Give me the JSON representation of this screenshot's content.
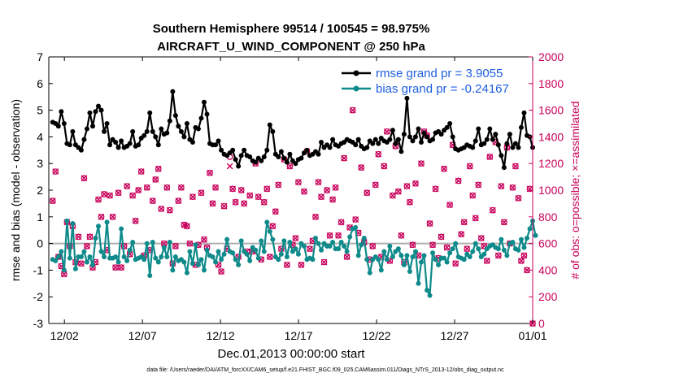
{
  "chart_data": {
    "type": "line",
    "title": "Southern Hemisphere 99514 / 100545 = 98.975%",
    "subtitle": "AIRCRAFT_U_WIND_COMPONENT @ 250 hPa",
    "xlabel": "Dec.01,2013 00:00:00 start",
    "ylabel": "rmse and bias (model - observation)",
    "ylabel_right": "# of obs: o=possible; ×=assimilated",
    "footnote": "data file: /Users/raeder/DAI/ATM_forcXX/CAM6_setup/f.e21.FHIST_BGC.f09_025.CAM6assim.011/Diags_NTrS_2013-12/obs_diag_output.nc",
    "x_range": [
      0,
      31
    ],
    "ylim": [
      -3,
      7
    ],
    "ylim_right": [
      0,
      2000
    ],
    "x_ticks": [
      1,
      6,
      11,
      16,
      21,
      26,
      31
    ],
    "x_tick_labels": [
      "12/02",
      "12/07",
      "12/12",
      "12/17",
      "12/22",
      "12/27",
      "01/01"
    ],
    "y_ticks": [
      "-3",
      "-2",
      "-1",
      "0",
      "1",
      "2",
      "3",
      "4",
      "5",
      "6",
      "7"
    ],
    "y_ticks_right": [
      "0",
      "200",
      "400",
      "600",
      "800",
      "1000",
      "1200",
      "1400",
      "1600",
      "1800",
      "2000"
    ],
    "legend_position": "top-right",
    "series": [
      {
        "name": "rmse grand pr = 3.9055",
        "color": "#000000",
        "values": [
          4.55,
          4.5,
          4.4,
          4.95,
          4.5,
          3.75,
          3.7,
          4.2,
          3.7,
          3.6,
          3.5,
          3.9,
          4.3,
          4.9,
          4.4,
          4.95,
          5.15,
          5.0,
          4.2,
          4.5,
          3.7,
          3.9,
          3.8,
          3.6,
          3.85,
          3.6,
          3.65,
          3.75,
          4.2,
          3.65,
          3.7,
          3.95,
          4.05,
          4.2,
          4.9,
          4.2,
          4.0,
          3.7,
          4.3,
          4.1,
          4.15,
          4.6,
          5.7,
          4.8,
          4.4,
          4.2,
          4.0,
          4.5,
          3.9,
          3.8,
          4.35,
          4.3,
          4.7,
          5.3,
          4.85,
          3.75,
          3.7,
          3.7,
          3.85,
          3.5,
          3.35,
          3.3,
          3.4,
          3.5,
          3.15,
          2.9,
          3.3,
          3.5,
          3.3,
          3.25,
          3.1,
          3.05,
          3.2,
          3.1,
          3.25,
          3.5,
          4.45,
          4.2,
          3.35,
          3.25,
          3.45,
          3.2,
          3.05,
          3.35,
          3.1,
          3.0,
          3.15,
          3.2,
          3.4,
          3.5,
          3.3,
          3.35,
          3.45,
          3.35,
          3.8,
          3.6,
          3.7,
          3.6,
          3.9,
          3.7,
          3.65,
          3.75,
          3.8,
          3.9,
          3.85,
          3.8,
          3.7,
          3.9,
          3.65,
          3.55,
          3.6,
          3.85,
          3.75,
          3.9,
          3.75,
          3.95,
          3.85,
          3.8,
          3.9,
          4.25,
          3.75,
          3.9,
          3.45,
          4.1,
          5.45,
          4.0,
          3.85,
          4.0,
          4.3,
          3.8,
          4.15,
          4.0,
          3.85,
          3.9,
          4.15,
          4.2,
          4.1,
          4.25,
          4.35,
          4.5,
          4.0,
          3.55,
          3.5,
          3.55,
          3.6,
          3.7,
          3.65,
          3.6,
          3.85,
          4.3,
          3.7,
          3.75,
          3.9,
          4.3,
          3.9,
          4.1,
          3.7,
          3.3,
          2.85,
          3.75,
          4.1,
          3.6,
          3.75,
          3.6,
          4.35,
          4.9,
          4.05,
          4.0,
          3.6
        ]
      },
      {
        "name": "bias grand pr = -0.24167",
        "color": "#0f8a8a",
        "values": [
          -0.6,
          -0.65,
          -0.5,
          -0.3,
          -1.0,
          0.85,
          -0.55,
          0.75,
          -0.95,
          -0.5,
          -0.5,
          -0.3,
          -0.7,
          -0.5,
          -0.8,
          0.2,
          0.65,
          -0.3,
          -0.5,
          0.8,
          -0.55,
          -0.55,
          -0.5,
          -0.7,
          0.55,
          -0.5,
          -0.65,
          -0.25,
          0.05,
          -0.6,
          -0.55,
          -0.5,
          -0.6,
          0.0,
          -1.2,
          0.05,
          -0.55,
          -0.7,
          -0.5,
          -0.15,
          -0.5,
          0.05,
          -1.0,
          -0.5,
          -0.65,
          -0.6,
          -0.7,
          -1.1,
          -0.3,
          -0.75,
          -0.05,
          -0.8,
          -0.6,
          -1.0,
          -0.25,
          -0.45,
          -0.5,
          -0.7,
          -0.3,
          -0.6,
          -0.4,
          0.15,
          -0.3,
          -0.35,
          -0.6,
          -0.8,
          0.1,
          -0.3,
          -0.4,
          -0.65,
          -0.15,
          -0.25,
          -0.55,
          0.1,
          -0.3,
          0.8,
          0.45,
          0.15,
          -0.5,
          -0.6,
          -0.4,
          0.1,
          -0.5,
          0.05,
          -0.3,
          -0.2,
          -0.4,
          0.0,
          -0.1,
          -0.6,
          -0.55,
          -0.6,
          0.2,
          0.0,
          -0.25,
          0.0,
          -0.1,
          -0.1,
          0.05,
          -0.2,
          -0.2,
          0.05,
          -0.1,
          -0.3,
          0.25,
          0.55,
          0.6,
          -0.45,
          -0.05,
          0.2,
          -0.6,
          -1.1,
          -0.6,
          -0.5,
          -0.6,
          -1.0,
          -0.3,
          -0.6,
          -0.1,
          -0.5,
          -0.3,
          -0.2,
          -0.45,
          -0.8,
          -0.45,
          -1.05,
          -0.5,
          -0.3,
          -1.5,
          -0.7,
          -0.45,
          -1.75,
          -1.95,
          -0.35,
          -0.6,
          -0.8,
          -0.55,
          -0.55,
          -0.7,
          -0.35,
          -0.2,
          0.0,
          -0.5,
          -0.55,
          -0.6,
          -0.4,
          -0.5,
          -0.3,
          0.0,
          -0.2,
          -0.5,
          -0.4,
          -0.2,
          -0.1,
          -0.05,
          -0.15,
          -0.2,
          0.15,
          -0.25,
          -0.45,
          0.0,
          0.05,
          -0.2,
          -0.25,
          0.15,
          -0.15,
          0.2,
          0.55,
          0.85,
          0.3
        ]
      },
      {
        "name": "# of obs possible",
        "color": "#c8005a",
        "marker": "o",
        "axis": "right",
        "values": [
          920,
          1140,
          500,
          430,
          370,
          760,
          580,
          730,
          460,
          650,
          450,
          1090,
          580,
          650,
          420,
          460,
          930,
          800,
          970,
          550,
          960,
          800,
          420,
          980,
          420,
          580,
          1030,
          520,
          960,
          770,
          1000,
          1140,
          510,
          1020,
          550,
          920,
          1080,
          1160,
          860,
          600,
          1020,
          850,
          450,
          580,
          920,
          1020,
          740,
          730,
          600,
          950,
          440,
          590,
          980,
          630,
          570,
          1130,
          900,
          1020,
          440,
          390,
          880,
          560,
          1250,
          1010,
          910,
          500,
          1000,
          900,
          540,
          960,
          540,
          1200,
          950,
          480,
          910,
          1010,
          500,
          730,
          840,
          1040,
          560,
          1230,
          440,
          1180,
          590,
          640,
          1060,
          440,
          990,
          1290,
          560,
          620,
          800,
          1060,
          950,
          460,
          1000,
          660,
          930,
          1020,
          660,
          760,
          1240,
          500,
          720,
          1600,
          780,
          680,
          1170,
          610,
          980,
          480,
          580,
          1040,
          1270,
          500,
          1180,
          1440,
          470,
          960,
          1330,
          990,
          660,
          460,
          1030,
          910,
          590,
          1050,
          510,
          1200,
          1440,
          1410,
          750,
          590,
          1010,
          490,
          650,
          1160,
          570,
          890,
          1340,
          450,
          1070,
          670,
          760,
          560,
          1180,
          960,
          790,
          1040,
          640,
          580,
          470,
          1250,
          850,
          1360,
          510,
          1030,
          760,
          1320,
          600,
          1020,
          1180,
          940,
          470,
          510,
          400,
          1010,
          0
        ]
      },
      {
        "name": "# of obs assimilated",
        "color": "#c8005a",
        "marker": "x",
        "axis": "right",
        "values": [
          920,
          1140,
          500,
          430,
          370,
          760,
          580,
          730,
          460,
          650,
          450,
          1090,
          580,
          650,
          420,
          460,
          930,
          800,
          970,
          550,
          960,
          800,
          420,
          980,
          420,
          580,
          1030,
          520,
          960,
          770,
          1000,
          1140,
          510,
          1020,
          550,
          920,
          1080,
          1160,
          860,
          600,
          1020,
          850,
          450,
          580,
          920,
          1020,
          740,
          730,
          600,
          950,
          440,
          590,
          980,
          630,
          570,
          1130,
          900,
          1020,
          440,
          390,
          880,
          560,
          1180,
          1010,
          910,
          500,
          1000,
          900,
          540,
          960,
          540,
          1200,
          950,
          480,
          910,
          1010,
          500,
          730,
          840,
          1040,
          560,
          1230,
          440,
          1180,
          590,
          640,
          1060,
          440,
          990,
          1290,
          560,
          620,
          800,
          1060,
          950,
          460,
          1000,
          660,
          930,
          1020,
          660,
          760,
          1240,
          500,
          720,
          1600,
          780,
          680,
          1170,
          610,
          980,
          480,
          580,
          1040,
          1270,
          500,
          1180,
          1440,
          470,
          960,
          1330,
          990,
          660,
          460,
          1030,
          910,
          590,
          1050,
          510,
          1200,
          1440,
          1410,
          750,
          590,
          1010,
          490,
          650,
          1160,
          570,
          890,
          1340,
          450,
          1070,
          670,
          760,
          560,
          1180,
          960,
          790,
          1040,
          640,
          580,
          470,
          1250,
          850,
          1360,
          510,
          1030,
          760,
          1320,
          600,
          1020,
          1180,
          940,
          470,
          510,
          400,
          1010,
          0
        ]
      }
    ],
    "zero_line": 0
  }
}
